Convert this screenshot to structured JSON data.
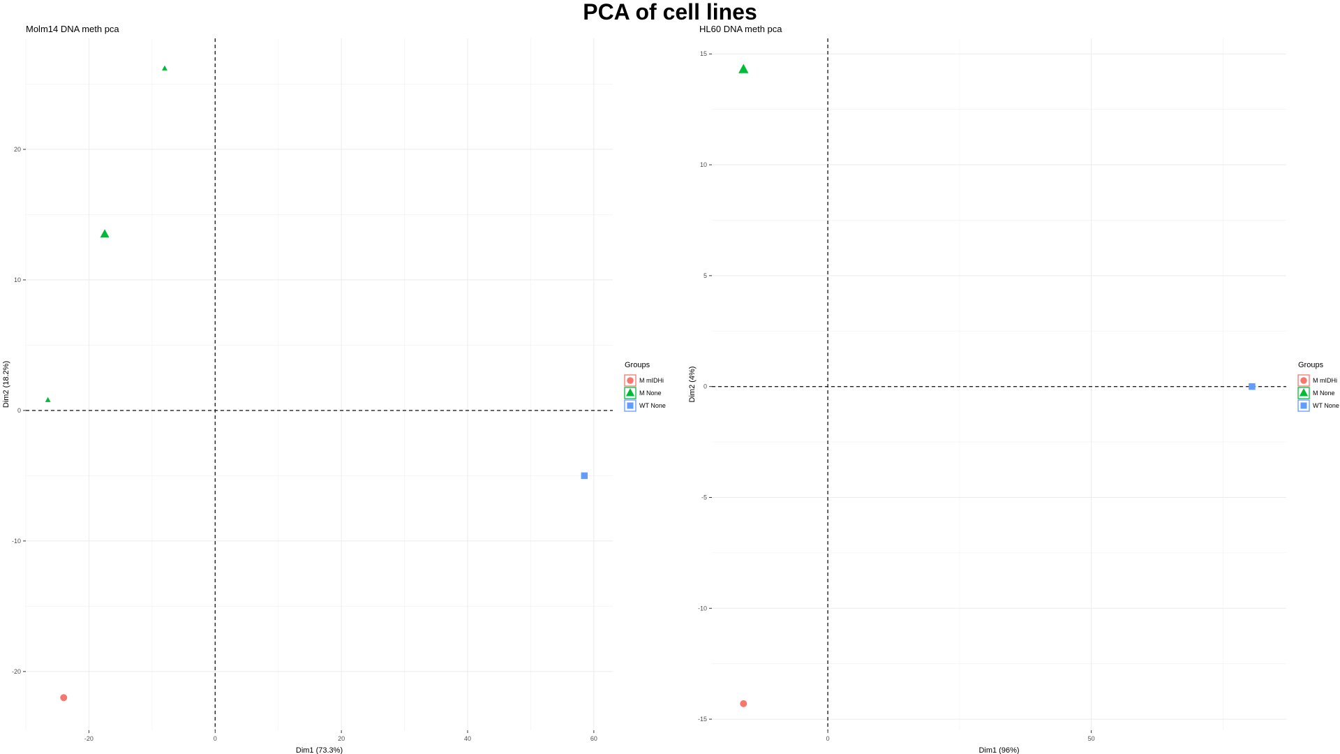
{
  "page": {
    "title": "PCA of cell lines"
  },
  "legend": {
    "title": "Groups",
    "entries": [
      {
        "label": "M mIDHi",
        "color": "#F8766D",
        "shape": "circle"
      },
      {
        "label": "M None",
        "color": "#00BA38",
        "shape": "triangle"
      },
      {
        "label": "WT None",
        "color": "#619CFF",
        "shape": "square"
      }
    ]
  },
  "chart_data": [
    {
      "type": "scatter",
      "title": "Molm14 DNA meth pca",
      "xlabel": "Dim1 (73.3%)",
      "ylabel": "Dim2 (18.2%)",
      "xlim": [
        -30,
        63
      ],
      "ylim": [
        -24.5,
        28.5
      ],
      "xticks": [
        -20,
        0,
        20,
        40,
        60
      ],
      "yticks": [
        -20,
        -10,
        0,
        10,
        20
      ],
      "grid": true,
      "legend_position": "right",
      "reference_lines": {
        "x": 0,
        "y": 0,
        "style": "dashed"
      },
      "series": [
        {
          "name": "M mIDHi",
          "points": [
            {
              "x": -24,
              "y": -22,
              "size": 1
            }
          ]
        },
        {
          "name": "M None",
          "points": [
            {
              "x": -8,
              "y": 26.2,
              "size": 0.6
            },
            {
              "x": -17.5,
              "y": 13.5,
              "size": 1
            },
            {
              "x": -26.5,
              "y": 0.8,
              "size": 0.6
            }
          ]
        },
        {
          "name": "WT None",
          "points": [
            {
              "x": 58.5,
              "y": -5,
              "size": 1
            }
          ]
        }
      ]
    },
    {
      "type": "scatter",
      "title": "HL60 DNA meth pca",
      "xlabel": "Dim1 (96%)",
      "ylabel": "Dim2 (4%)",
      "xlim": [
        -22,
        87
      ],
      "ylim": [
        -15.5,
        15.7
      ],
      "xticks": [
        0,
        50
      ],
      "yticks": [
        -15,
        -10,
        -5,
        0,
        5,
        10,
        15
      ],
      "grid": true,
      "legend_position": "right",
      "reference_lines": {
        "x": 0,
        "y": 0,
        "style": "dashed"
      },
      "series": [
        {
          "name": "M mIDHi",
          "points": [
            {
              "x": -16,
              "y": -14.3,
              "size": 1
            }
          ]
        },
        {
          "name": "M None",
          "points": [
            {
              "x": -16,
              "y": 14.3,
              "size": 1.1
            }
          ]
        },
        {
          "name": "WT None",
          "points": [
            {
              "x": 80.5,
              "y": 0,
              "size": 1
            }
          ]
        }
      ]
    }
  ]
}
